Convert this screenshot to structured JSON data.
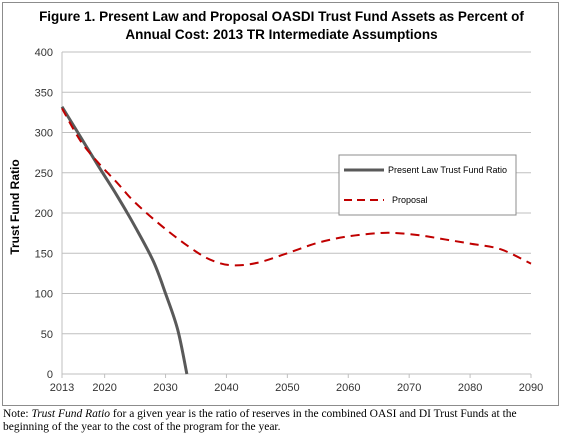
{
  "chart_data": {
    "type": "line",
    "title_line1": "Figure 1. Present Law and Proposal OASDI Trust Fund Assets as Percent of",
    "title_line2": "Annual Cost: 2013 TR Intermediate Assumptions",
    "xlabel": "",
    "ylabel": "Trust Fund Ratio",
    "xlim": [
      2013,
      2090
    ],
    "ylim": [
      0,
      400
    ],
    "xticks": [
      2013,
      2020,
      2030,
      2040,
      2050,
      2060,
      2070,
      2080,
      2090
    ],
    "yticks": [
      0,
      50,
      100,
      150,
      200,
      250,
      300,
      350,
      400
    ],
    "grid": "horizontal",
    "legend_position": "right",
    "series": [
      {
        "name": "Present Law Trust Fund Ratio",
        "color": "#595959",
        "style": "solid",
        "x": [
          2013,
          2016,
          2019,
          2022,
          2025,
          2028,
          2030,
          2032,
          2033.5
        ],
        "y": [
          332,
          295,
          258,
          222,
          183,
          140,
          100,
          55,
          0
        ]
      },
      {
        "name": "Proposal",
        "color": "#c00000",
        "style": "dashed",
        "x": [
          2013,
          2016,
          2019,
          2022,
          2025,
          2030,
          2035,
          2038,
          2041,
          2045,
          2050,
          2055,
          2060,
          2065,
          2068,
          2072,
          2076,
          2080,
          2085,
          2090
        ],
        "y": [
          330,
          290,
          262,
          238,
          213,
          180,
          152,
          140,
          135,
          138,
          150,
          163,
          171,
          175,
          175,
          172,
          167,
          162,
          155,
          137
        ]
      }
    ]
  },
  "note": {
    "prefix": "Note: ",
    "term": "Trust Fund Ratio",
    "text": " for a given year is the ratio of reserves in the combined OASI and DI Trust Funds at the beginning of the year to the cost of the program for the year."
  }
}
